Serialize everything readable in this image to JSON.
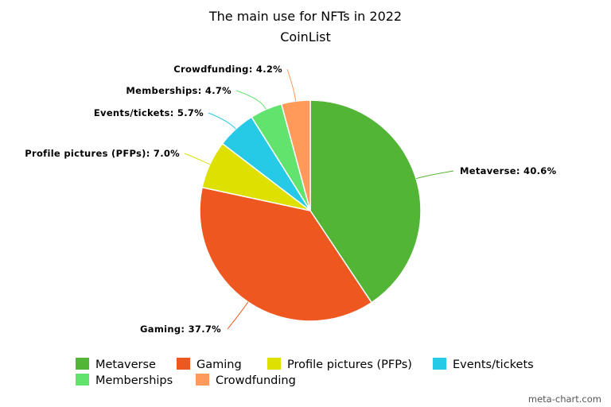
{
  "chart_data": {
    "type": "pie",
    "title": "The main use for NFTs in 2022",
    "subtitle": "CoinList",
    "unit": "%",
    "legend_position": "bottom",
    "slices": [
      {
        "label": "Metaverse",
        "value": 40.6,
        "color": "#52b535",
        "label_text": "Metaverse: 40.6%"
      },
      {
        "label": "Gaming",
        "value": 37.7,
        "color": "#ee5720",
        "label_text": "Gaming: 37.7%"
      },
      {
        "label": "Profile pictures (PFPs)",
        "value": 7.0,
        "color": "#dde000",
        "label_text": "Profile pictures (PFPs): 7.0%"
      },
      {
        "label": "Events/tickets",
        "value": 5.7,
        "color": "#26cae6",
        "label_text": "Events/tickets: 5.7%"
      },
      {
        "label": "Memberships",
        "value": 4.7,
        "color": "#62e36e",
        "label_text": "Memberships: 4.7%"
      },
      {
        "label": "Crowdfunding",
        "value": 4.2,
        "color": "#ff9a5a",
        "label_text": "Crowdfunding: 4.2%"
      }
    ]
  },
  "footer": {
    "credit": "meta-chart.com"
  }
}
